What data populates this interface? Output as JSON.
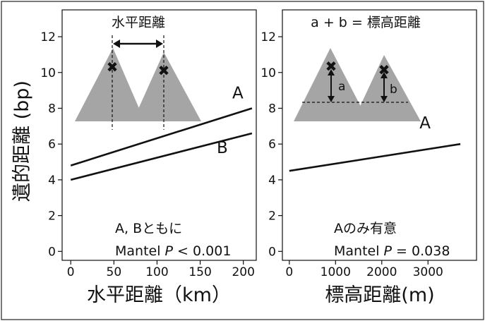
{
  "chart_data": [
    {
      "type": "line",
      "panel": "left",
      "xlabel": "水平距離（km）",
      "ylabel": "遺的距離 (bp)",
      "xlim": [
        -10,
        215
      ],
      "ylim": [
        -0.5,
        13.5
      ],
      "xticks": [
        0,
        50,
        100,
        150,
        200
      ],
      "yticks": [
        0,
        2,
        4,
        6,
        8,
        10,
        12
      ],
      "series": [
        {
          "name": "A",
          "x": [
            0,
            210
          ],
          "y": [
            4.8,
            8.0
          ]
        },
        {
          "name": "B",
          "x": [
            0,
            210
          ],
          "y": [
            4.0,
            6.6
          ]
        }
      ],
      "inset": {
        "label": "水平距離"
      },
      "annotation_lines": [
        "A, Bともに",
        "Mantel ",
        "P",
        " < 0.001"
      ]
    },
    {
      "type": "line",
      "panel": "right",
      "xlabel": "標高距離(m)",
      "ylabel": "",
      "xlim": [
        -150,
        4050
      ],
      "ylim": [
        -0.5,
        13.5
      ],
      "xticks": [
        0,
        1000,
        2000,
        3000
      ],
      "yticks": [
        0,
        2,
        4,
        6,
        8,
        10,
        12
      ],
      "series": [
        {
          "name": "A",
          "x": [
            0,
            3700
          ],
          "y": [
            4.5,
            6.0
          ]
        }
      ],
      "inset": {
        "label": "a + b = 標高距離",
        "a": "a",
        "b": "b"
      },
      "annotation_lines": [
        "Aのみ有意",
        "Mantel ",
        "P",
        " = 0.038"
      ]
    }
  ]
}
